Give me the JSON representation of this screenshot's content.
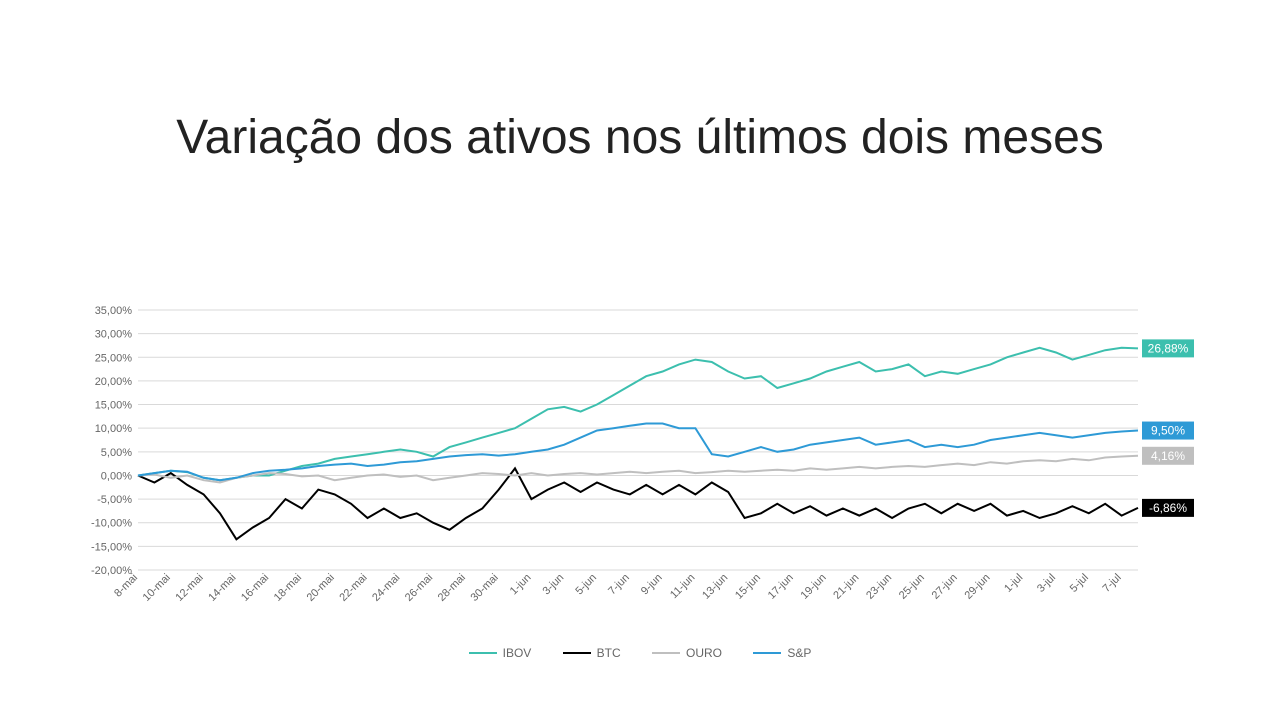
{
  "title": "Variação dos ativos nos últimos dois meses",
  "chart": {
    "type": "line",
    "background_color": "#ffffff",
    "grid_color": "#d9d9d9",
    "axis_font_size": 11,
    "axis_text_color": "#666666",
    "ylim": [
      -20,
      35
    ],
    "ytick_step": 5,
    "y_suffix": "%",
    "y_decimals": 2,
    "decimal_separator": ",",
    "x_labels": [
      "8-mai",
      "10-mai",
      "12-mai",
      "14-mai",
      "16-mai",
      "18-mai",
      "20-mai",
      "22-mai",
      "24-mai",
      "26-mai",
      "28-mai",
      "30-mai",
      "1-jun",
      "3-jun",
      "5-jun",
      "7-jun",
      "9-jun",
      "11-jun",
      "13-jun",
      "15-jun",
      "17-jun",
      "19-jun",
      "21-jun",
      "23-jun",
      "25-jun",
      "27-jun",
      "29-jun",
      "1-jul",
      "3-jul",
      "5-jul",
      "7-jul"
    ],
    "x_label_rotation": -45,
    "n_points": 62,
    "line_width": 2,
    "series": [
      {
        "name": "IBOV",
        "color": "#3cbfae",
        "end_label": "26,88%",
        "end_label_bg": "#3cbfae",
        "end_label_fg": "#ffffff",
        "values": [
          0,
          0.5,
          1.0,
          0.7,
          -0.5,
          -1.0,
          -0.5,
          0.0,
          0.0,
          1.0,
          2.0,
          2.5,
          3.5,
          4.0,
          4.5,
          5.0,
          5.5,
          5.0,
          4.0,
          6.0,
          7.0,
          8.0,
          9.0,
          10.0,
          12.0,
          14.0,
          14.5,
          13.5,
          15.0,
          17.0,
          19.0,
          21.0,
          22.0,
          23.5,
          24.5,
          24.0,
          22.0,
          20.5,
          21.0,
          18.5,
          19.5,
          20.5,
          22.0,
          23.0,
          24.0,
          22.0,
          22.5,
          23.5,
          21.0,
          22.0,
          21.5,
          22.5,
          23.5,
          25.0,
          26.0,
          27.0,
          26.0,
          24.5,
          25.5,
          26.5,
          27.0,
          26.88
        ]
      },
      {
        "name": "BTC",
        "color": "#000000",
        "end_label": "-6,86%",
        "end_label_bg": "#000000",
        "end_label_fg": "#ffffff",
        "values": [
          0,
          -1.5,
          0.5,
          -2.0,
          -4.0,
          -8.0,
          -13.5,
          -11.0,
          -9.0,
          -5.0,
          -7.0,
          -3.0,
          -4.0,
          -6.0,
          -9.0,
          -7.0,
          -9.0,
          -8.0,
          -10.0,
          -11.5,
          -9.0,
          -7.0,
          -3.0,
          1.5,
          -5.0,
          -3.0,
          -1.5,
          -3.5,
          -1.5,
          -3.0,
          -4.0,
          -2.0,
          -4.0,
          -2.0,
          -4.0,
          -1.5,
          -3.5,
          -9.0,
          -8.0,
          -6.0,
          -8.0,
          -6.5,
          -8.5,
          -7.0,
          -8.5,
          -7.0,
          -9.0,
          -7.0,
          -6.0,
          -8.0,
          -6.0,
          -7.5,
          -6.0,
          -8.5,
          -7.5,
          -9.0,
          -8.0,
          -6.5,
          -8.0,
          -6.0,
          -8.5,
          -6.86
        ]
      },
      {
        "name": "OURO",
        "color": "#bfbfbf",
        "end_label": "4,16%",
        "end_label_bg": "#bfbfbf",
        "end_label_fg": "#ffffff",
        "values": [
          0,
          0.2,
          -0.5,
          0.0,
          -1.0,
          -1.5,
          -0.5,
          0.0,
          0.5,
          0.3,
          -0.2,
          0.0,
          -1.0,
          -0.5,
          0.0,
          0.2,
          -0.3,
          0.0,
          -1.0,
          -0.5,
          0.0,
          0.5,
          0.3,
          0.0,
          0.5,
          0.0,
          0.3,
          0.5,
          0.2,
          0.5,
          0.8,
          0.5,
          0.8,
          1.0,
          0.5,
          0.7,
          1.0,
          0.8,
          1.0,
          1.2,
          1.0,
          1.5,
          1.2,
          1.5,
          1.8,
          1.5,
          1.8,
          2.0,
          1.8,
          2.2,
          2.5,
          2.2,
          2.8,
          2.5,
          3.0,
          3.2,
          3.0,
          3.5,
          3.2,
          3.8,
          4.0,
          4.16
        ]
      },
      {
        "name": "S&P",
        "color": "#2e9ad6",
        "end_label": "9,50%",
        "end_label_bg": "#2e9ad6",
        "end_label_fg": "#ffffff",
        "values": [
          0,
          0.5,
          1.0,
          0.8,
          -0.5,
          -1.0,
          -0.5,
          0.5,
          1.0,
          1.2,
          1.5,
          2.0,
          2.3,
          2.5,
          2.0,
          2.3,
          2.8,
          3.0,
          3.5,
          4.0,
          4.3,
          4.5,
          4.2,
          4.5,
          5.0,
          5.5,
          6.5,
          8.0,
          9.5,
          10.0,
          10.5,
          11.0,
          11.0,
          10.0,
          10.0,
          4.5,
          4.0,
          5.0,
          6.0,
          5.0,
          5.5,
          6.5,
          7.0,
          7.5,
          8.0,
          6.5,
          7.0,
          7.5,
          6.0,
          6.5,
          6.0,
          6.5,
          7.5,
          8.0,
          8.5,
          9.0,
          8.5,
          8.0,
          8.5,
          9.0,
          9.3,
          9.5
        ]
      }
    ],
    "end_label_width": 52,
    "end_label_height": 18
  },
  "legend_label_ibov": "IBOV",
  "legend_label_btc": "BTC",
  "legend_label_ouro": "OURO",
  "legend_label_sp": "S&P"
}
